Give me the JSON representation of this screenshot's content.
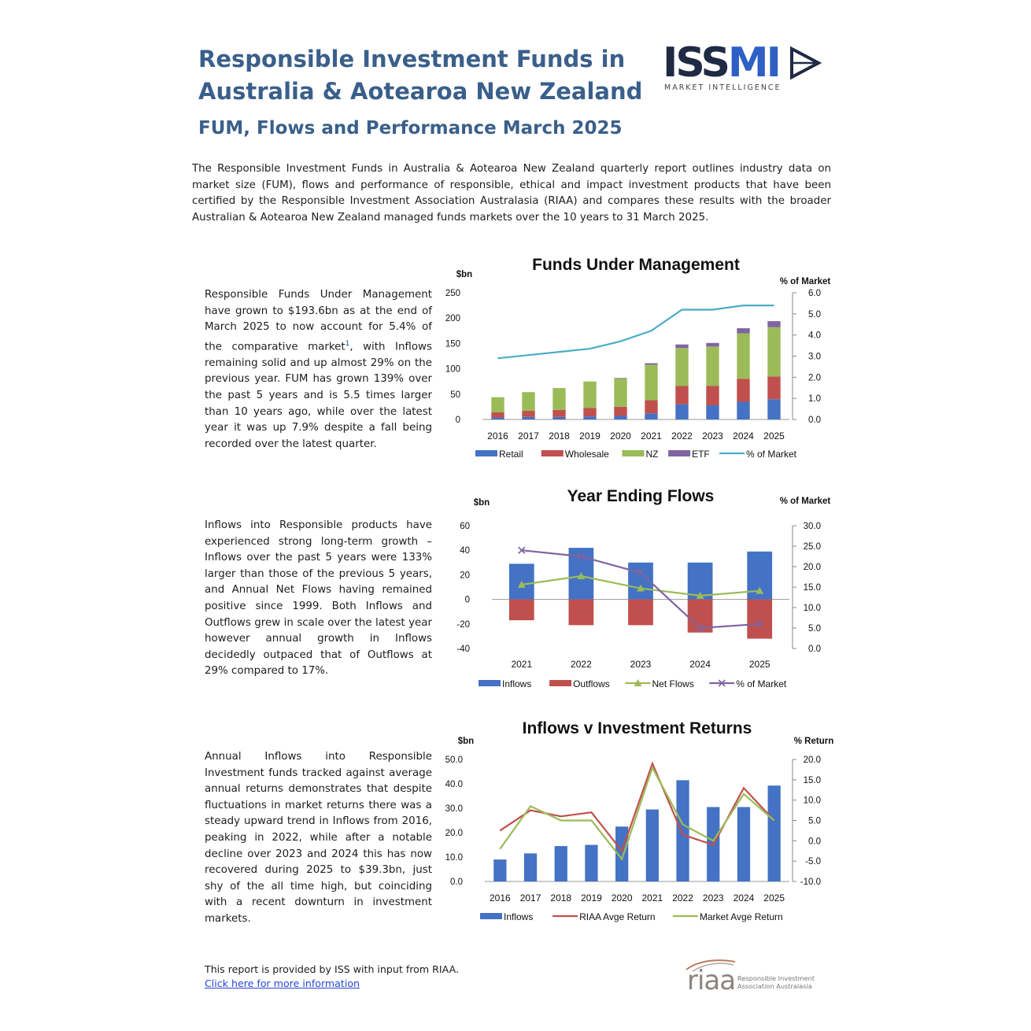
{
  "header": {
    "title_line1": "Responsible Investment Funds in",
    "title_line2": "Australia & Aotearoa New Zealand",
    "subtitle": "FUM, Flows and Performance March 2025"
  },
  "logo": {
    "iss": "ISS",
    "mi": "MI",
    "tagline": "MARKET INTELLIGENCE"
  },
  "intro": "The Responsible Investment Funds in Australia & Aotearoa New Zealand quarterly report outlines industry data on market size (FUM), flows and performance of responsible, ethical and impact investment products that have been certified by the Responsible Investment Association Australasia (RIAA) and compares these results with the broader Australian & Aotearoa New Zealand managed funds markets over the 10 years to 31 March 2025.",
  "sections": {
    "fum_text_a": "Responsible Funds Under Management have grown to $193.6bn as at the end of March 2025 to now account for 5.4% of the comparative market",
    "fum_text_sup": "1",
    "fum_text_b": ", with Inflows remaining solid and up almost 29% on the previous year. FUM has grown 139% over the past 5 years and is 5.5 times larger than 10 years ago, while over the latest year it was up 7.9% despite a fall being recorded over the latest quarter.",
    "flows_text": "Inflows into Responsible products have experienced strong long-term growth – Inflows over the past 5 years were 133% larger than those of the previous 5 years, and Annual Net Flows having remained positive since 1999. Both Inflows and Outflows grew in scale over the latest year however annual growth in Inflows decidedly outpaced that of Outflows at 29% compared to 17%.",
    "returns_text": "Annual Inflows into Responsible Investment funds tracked against average annual returns demonstrates that despite fluctuations in market returns there was a steady upward trend in Inflows from 2016, peaking in 2022, while after a notable decline over 2023 and 2024 this has now recovered during 2025 to $39.3bn, just shy of the all time high, but coinciding with a recent downturn in investment markets."
  },
  "footer": {
    "provided": "This report is provided by ISS with input from RIAA.",
    "link": "Click here for more information"
  },
  "riaa": {
    "mark": "riaa",
    "name": "Responsible Investment Association Australasia"
  },
  "chart_data": [
    {
      "type": "bar",
      "stacked": true,
      "title": "Funds Under Management",
      "ylabel": "$bn",
      "y2label": "% of Market",
      "ylim": [
        0,
        250
      ],
      "yticks": [
        0,
        50,
        100,
        150,
        200,
        250
      ],
      "y2lim": [
        0,
        6
      ],
      "y2ticks": [
        "0.0",
        "1.0",
        "2.0",
        "3.0",
        "4.0",
        "5.0",
        "6.0"
      ],
      "categories": [
        "2016",
        "2017",
        "2018",
        "2019",
        "2020",
        "2021",
        "2022",
        "2023",
        "2024",
        "2025"
      ],
      "series": [
        {
          "name": "Retail",
          "kind": "bar",
          "color": "#4472c4",
          "values": [
            4,
            5,
            5,
            6,
            7,
            12,
            30,
            28,
            35,
            40
          ]
        },
        {
          "name": "Wholesale",
          "kind": "bar",
          "color": "#c0504d",
          "values": [
            10,
            12,
            14,
            17,
            18,
            26,
            36,
            38,
            45,
            45
          ]
        },
        {
          "name": "NZ",
          "kind": "bar",
          "color": "#9bbb59",
          "values": [
            30,
            37,
            43,
            52,
            56,
            70,
            75,
            78,
            90,
            97
          ]
        },
        {
          "name": "ETF",
          "kind": "bar",
          "color": "#8064a2",
          "values": [
            0,
            0,
            0,
            0,
            1,
            3,
            7,
            7,
            10,
            12
          ]
        },
        {
          "name": "% of Market",
          "kind": "line",
          "axis": "y2",
          "color": "#4bacc6",
          "values": [
            2.9,
            3.05,
            3.2,
            3.35,
            3.7,
            4.2,
            5.2,
            5.2,
            5.4,
            5.4
          ]
        }
      ],
      "legend": "bottom"
    },
    {
      "type": "bar",
      "title": "Year Ending Flows",
      "ylabel": "$bn",
      "y2label": "% of Market",
      "ylim": [
        -40,
        60
      ],
      "yticks": [
        -40,
        -20,
        0,
        20,
        40,
        60
      ],
      "y2lim": [
        0,
        30
      ],
      "y2ticks": [
        "0.0",
        "5.0",
        "10.0",
        "15.0",
        "20.0",
        "25.0",
        "30.0"
      ],
      "categories": [
        "2021",
        "2022",
        "2023",
        "2024",
        "2025"
      ],
      "series": [
        {
          "name": "Inflows",
          "kind": "bar",
          "color": "#4472c4",
          "values": [
            29,
            42,
            30,
            30,
            39
          ]
        },
        {
          "name": "Outflows",
          "kind": "bar",
          "color": "#c0504d",
          "values": [
            -17,
            -21,
            -21,
            -27,
            -32
          ]
        },
        {
          "name": "Net Flows",
          "kind": "line",
          "marker": "triangle",
          "color": "#9bbb59",
          "values": [
            12,
            19,
            9,
            3,
            7
          ]
        },
        {
          "name": "% of Market",
          "kind": "line",
          "axis": "y2",
          "marker": "x",
          "color": "#8064a2",
          "values": [
            24,
            22.5,
            18.5,
            5,
            6
          ]
        }
      ],
      "legend": "bottom"
    },
    {
      "type": "bar",
      "title": "Inflows v Investment Returns",
      "ylabel": "$bn",
      "y2label": "% Return",
      "ylim": [
        0,
        50
      ],
      "yticks": [
        "0.0",
        "10.0",
        "20.0",
        "30.0",
        "40.0",
        "50.0"
      ],
      "y2lim": [
        -10,
        20
      ],
      "y2ticks": [
        "-10.0",
        "-5.0",
        "0.0",
        "5.0",
        "10.0",
        "15.0",
        "20.0"
      ],
      "categories": [
        "2016",
        "2017",
        "2018",
        "2019",
        "2020",
        "2021",
        "2022",
        "2023",
        "2024",
        "2025"
      ],
      "series": [
        {
          "name": "Inflows",
          "kind": "bar",
          "color": "#4472c4",
          "values": [
            9,
            11.5,
            14.5,
            15,
            22.5,
            29.5,
            41.5,
            30.5,
            30.5,
            39.3
          ]
        },
        {
          "name": "RIAA Avge Return",
          "kind": "line",
          "axis": "y2",
          "color": "#c0504d",
          "values": [
            2.5,
            7.5,
            6,
            7,
            -2.5,
            19,
            1.5,
            -1,
            13,
            5
          ]
        },
        {
          "name": "Market Avge Return",
          "kind": "line",
          "axis": "y2",
          "color": "#9bbb59",
          "values": [
            -2,
            8.5,
            5,
            5,
            -4.5,
            18,
            4,
            0,
            11.5,
            5
          ]
        }
      ],
      "legend": "bottom"
    }
  ]
}
